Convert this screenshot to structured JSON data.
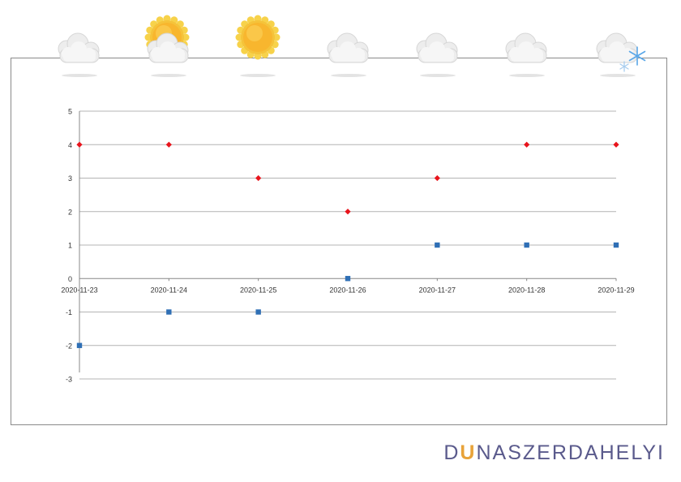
{
  "chart_data": {
    "type": "scatter",
    "title": "",
    "xlabel": "",
    "ylabel": "",
    "categories": [
      "2020-11-23",
      "2020-11-24",
      "2020-11-25",
      "2020-11-26",
      "2020-11-27",
      "2020-11-28",
      "2020-11-29"
    ],
    "ylim": [
      -3,
      5
    ],
    "yticks": [
      -3,
      -2,
      -1,
      0,
      1,
      2,
      3,
      4,
      5
    ],
    "grid": true,
    "legend": "none",
    "series": [
      {
        "values": [
          4,
          4,
          3,
          2,
          3,
          4,
          4
        ],
        "color": "#e8141c",
        "marker": "diamond"
      },
      {
        "values": [
          -2,
          -1,
          -1,
          0,
          1,
          1,
          1
        ],
        "color": "#2f6fb5",
        "marker": "square"
      }
    ]
  },
  "weather": [
    {
      "day": "2020-11-23",
      "icon": "cloud-icon"
    },
    {
      "day": "2020-11-24",
      "icon": "sun-cloud-icon"
    },
    {
      "day": "2020-11-25",
      "icon": "sun-icon"
    },
    {
      "day": "2020-11-26",
      "icon": "cloud-icon"
    },
    {
      "day": "2020-11-27",
      "icon": "cloud-icon"
    },
    {
      "day": "2020-11-28",
      "icon": "cloud-icon"
    },
    {
      "day": "2020-11-29",
      "icon": "cloud-snow-icon"
    }
  ],
  "brand": {
    "part1": "D",
    "part2": "U",
    "part3": "NASZERDAHELYI"
  },
  "colors": {
    "grid": "#b4b4b4",
    "axis": "#888888",
    "text": "#333333",
    "frame": "#8a8a8a"
  }
}
